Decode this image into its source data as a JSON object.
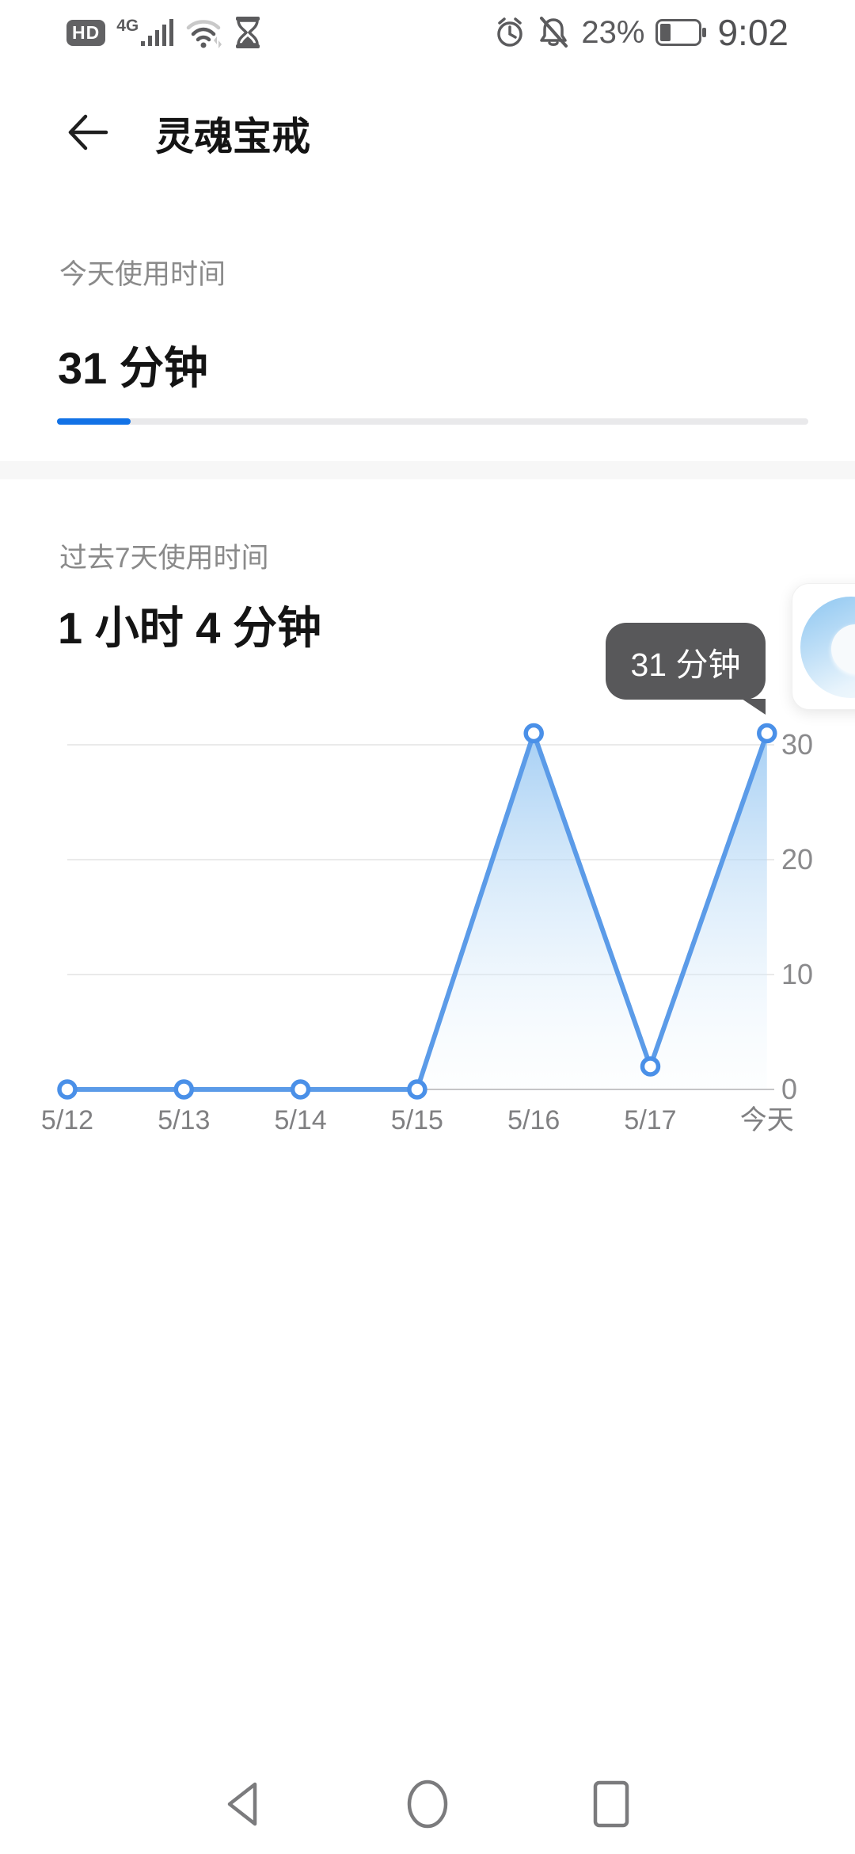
{
  "status_bar": {
    "hd_label": "HD",
    "network_label": "4G",
    "battery_percent": "23%",
    "time": "9:02",
    "icon_color": "#5b5b5d"
  },
  "header": {
    "title": "灵魂宝戒"
  },
  "today_section": {
    "label": "今天使用时间",
    "value": "31 分钟",
    "progress_percent": 9.8,
    "progress_color": "#1272e6"
  },
  "week_section": {
    "label": "过去7天使用时间",
    "value": "1 小时 4 分钟",
    "tooltip": "31 分钟"
  },
  "chart_data": {
    "type": "line",
    "title": "过去7天使用时间",
    "categories": [
      "5/12",
      "5/13",
      "5/14",
      "5/15",
      "5/16",
      "5/17",
      "今天"
    ],
    "values": [
      0,
      0,
      0,
      0,
      31,
      2,
      31
    ],
    "unit": "分钟",
    "yticks": [
      0,
      10,
      20,
      30
    ],
    "ylim": [
      0,
      34
    ],
    "grid": true,
    "legend_position": "none",
    "line_color": "#5b9be8",
    "dot_stroke_color": "#4a90e8",
    "fill_top_color": "rgba(151,199,242,0.85)",
    "fill_bottom_color": "rgba(240,248,253,0.15)",
    "gridline_color": "#e3e3e3",
    "axis_color": "#c5c5c7",
    "tick_label_color": "#8a8a8c",
    "tooltip_point_index": 6,
    "tooltip_text": "31 分钟"
  },
  "nav_bar": {
    "icon_color": "#7b7b7d"
  }
}
